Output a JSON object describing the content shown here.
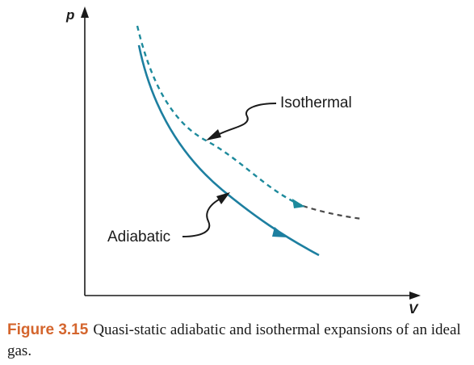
{
  "diagram": {
    "y_axis_label": "p",
    "x_axis_label": "V",
    "curves": [
      {
        "name": "Isothermal",
        "style": "dashed",
        "color": "#1d8a9c",
        "tail_color": "#4a4a4a"
      },
      {
        "name": "Adiabatic",
        "style": "solid",
        "color": "#1d7fa0"
      }
    ],
    "isothermal_label": "Isothermal",
    "adiabatic_label": "Adiabatic",
    "axis_color": "#1a1a1a"
  },
  "caption": {
    "figure_number": "Figure 3.15",
    "text": "Quasi-static adiabatic and isothermal expansions of an ideal gas.",
    "figure_number_color": "#d4652d"
  }
}
